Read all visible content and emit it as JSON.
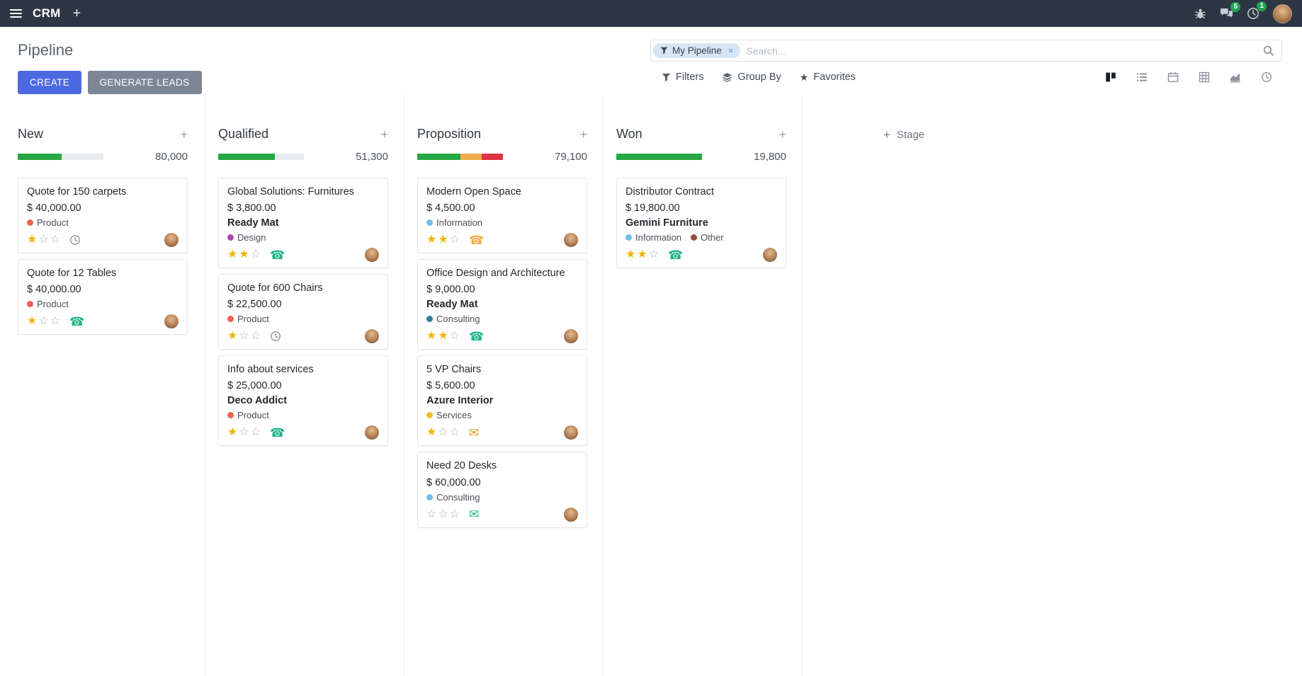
{
  "navbar": {
    "app_name": "CRM",
    "add_label": "+",
    "messages_badge": "5",
    "activities_badge": "1"
  },
  "control_panel": {
    "title": "Pipeline",
    "buttons": {
      "create": "CREATE",
      "generate_leads": "GENERATE LEADS"
    },
    "search": {
      "facet_label": "My Pipeline",
      "remove_label": "×",
      "placeholder": "Search..."
    },
    "filter_bar": {
      "filters": "Filters",
      "group_by": "Group By",
      "favorites": "Favorites"
    },
    "view_switcher": [
      "kanban",
      "list",
      "calendar",
      "pivot",
      "graph",
      "activity"
    ],
    "active_view": "kanban"
  },
  "icons": {
    "star_filled": "★",
    "star_empty": "☆",
    "phone": "☎",
    "envelope": "✉",
    "plus": "+"
  },
  "kanban": {
    "add_stage_label": "Stage",
    "add_stage_icon": "+",
    "columns": [
      {
        "name": "New",
        "total": "80,000",
        "progress": [
          {
            "color": "#28a745",
            "pct": 51
          }
        ],
        "cards": [
          {
            "title": "Quote for 150 carpets",
            "amount": "$ 40,000.00",
            "tags": [
              {
                "label": "Product",
                "color": "#f06050"
              }
            ],
            "stars": 1,
            "activity": {
              "icon": "clock-icon",
              "color": "#8a9199"
            }
          },
          {
            "title": "Quote for 12 Tables",
            "amount": "$ 40,000.00",
            "tags": [
              {
                "label": "Product",
                "color": "#f06050"
              }
            ],
            "stars": 1,
            "activity": {
              "icon": "phone-icon",
              "color": "#1eb488"
            }
          }
        ]
      },
      {
        "name": "Qualified",
        "total": "51,300",
        "progress": [
          {
            "color": "#28a745",
            "pct": 66
          }
        ],
        "cards": [
          {
            "title": "Global Solutions: Furnitures",
            "amount": "$ 3,800.00",
            "partner": "Ready Mat",
            "tags": [
              {
                "label": "Design",
                "color": "#a94bad"
              }
            ],
            "stars": 2,
            "activity": {
              "icon": "phone-icon",
              "color": "#1eb488"
            }
          },
          {
            "title": "Quote for 600 Chairs",
            "amount": "$ 22,500.00",
            "tags": [
              {
                "label": "Product",
                "color": "#f06050"
              }
            ],
            "stars": 1,
            "activity": {
              "icon": "clock-icon",
              "color": "#8a9199"
            }
          },
          {
            "title": "Info about services",
            "amount": "$ 25,000.00",
            "partner": "Deco Addict",
            "tags": [
              {
                "label": "Product",
                "color": "#f06050"
              }
            ],
            "stars": 1,
            "activity": {
              "icon": "phone-icon",
              "color": "#1eb488"
            }
          }
        ]
      },
      {
        "name": "Proposition",
        "total": "79,100",
        "progress": [
          {
            "color": "#28a745",
            "pct": 50
          },
          {
            "color": "#f0ad4e",
            "pct": 25
          },
          {
            "color": "#dc3545",
            "pct": 25
          }
        ],
        "cards": [
          {
            "title": "Modern Open Space",
            "amount": "$ 4,500.00",
            "tags": [
              {
                "label": "Information",
                "color": "#6cc1ed"
              }
            ],
            "stars": 2,
            "activity": {
              "icon": "phone-icon",
              "color": "#f0ad4e"
            }
          },
          {
            "title": "Office Design and Architecture",
            "amount": "$ 9,000.00",
            "partner": "Ready Mat",
            "tags": [
              {
                "label": "Consulting",
                "color": "#2c8397"
              }
            ],
            "stars": 2,
            "activity": {
              "icon": "phone-icon",
              "color": "#1eb488"
            }
          },
          {
            "title": "5 VP Chairs",
            "amount": "$ 5,600.00",
            "partner": "Azure Interior",
            "tags": [
              {
                "label": "Services",
                "color": "#edc12b"
              }
            ],
            "stars": 1,
            "activity": {
              "icon": "envelope-icon",
              "color": "#dfa22e"
            }
          },
          {
            "title": "Need 20 Desks",
            "amount": "$ 60,000.00",
            "tags": [
              {
                "label": "Consulting",
                "color": "#6cc1ed"
              }
            ],
            "stars": 0,
            "activity": {
              "icon": "envelope-icon",
              "color": "#1eb488"
            }
          }
        ]
      },
      {
        "name": "Won",
        "total": "19,800",
        "progress": [
          {
            "color": "#28a745",
            "pct": 100
          }
        ],
        "cards": [
          {
            "title": "Distributor Contract",
            "amount": "$ 19,800.00",
            "partner": "Gemini Furniture",
            "tags": [
              {
                "label": "Information",
                "color": "#6cc1ed"
              },
              {
                "label": "Other",
                "color": "#9c4a3f"
              }
            ],
            "stars": 2,
            "activity": {
              "icon": "phone-icon",
              "color": "#1eb488"
            }
          }
        ]
      }
    ]
  }
}
